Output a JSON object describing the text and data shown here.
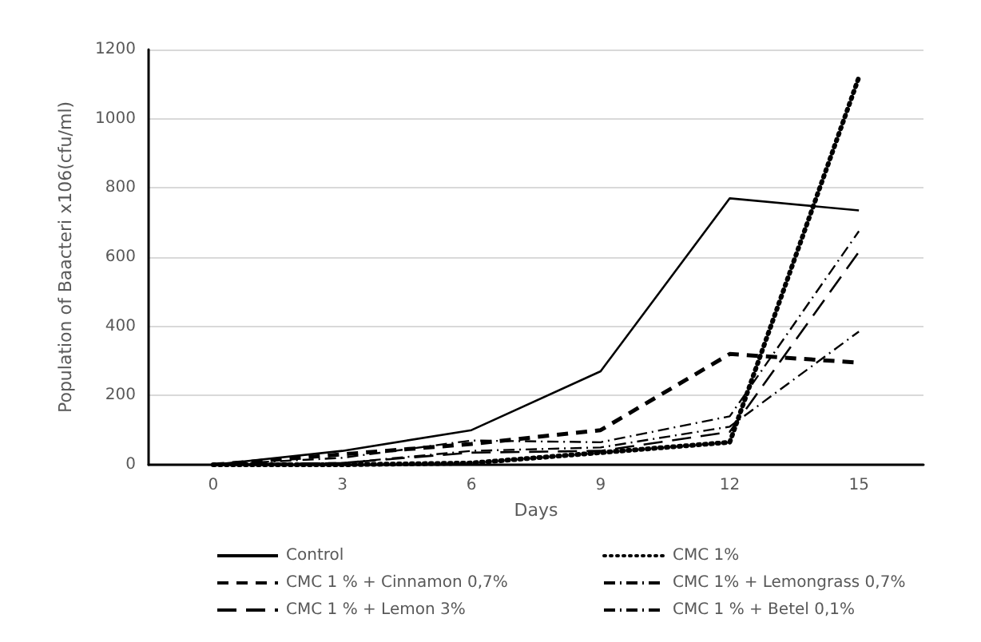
{
  "chart_data": {
    "type": "line",
    "xlabel": "Days",
    "ylabel": "Population of Baacteri x106(cfu/ml)",
    "categories": [
      "0",
      "3",
      "6",
      "9",
      "12",
      "15"
    ],
    "series": [
      {
        "name": "Control",
        "color": "#000000",
        "line_style": "solid",
        "values": [
          0,
          40,
          100,
          270,
          770,
          735
        ]
      },
      {
        "name": "CMC 1%",
        "color": "#000000",
        "line_style": "dotted",
        "values": [
          0,
          0,
          5,
          35,
          65,
          1120
        ]
      },
      {
        "name": "CMC 1 % + Cinnamon 0,7%",
        "color": "#000000",
        "line_style": "dashed",
        "values": [
          0,
          30,
          60,
          100,
          320,
          295
        ]
      },
      {
        "name": "CMC 1% + Lemongrass 0,7%",
        "color": "#000000",
        "line_style": "dashdot",
        "values": [
          0,
          5,
          40,
          50,
          110,
          385
        ]
      },
      {
        "name": "CMC 1 % + Lemon 3%",
        "color": "#000000",
        "line_style": "longdash",
        "values": [
          0,
          5,
          35,
          40,
          95,
          615
        ]
      },
      {
        "name": "CMC 1 % + Betel 0,1%",
        "color": "#000000",
        "line_style": "dashdot",
        "values": [
          0,
          20,
          70,
          65,
          140,
          675
        ]
      }
    ],
    "ylim": [
      0,
      1200
    ],
    "yticks": [
      0,
      200,
      400,
      600,
      800,
      1000,
      1200
    ],
    "grid": "y",
    "legend": "bottom",
    "marker": "none"
  }
}
